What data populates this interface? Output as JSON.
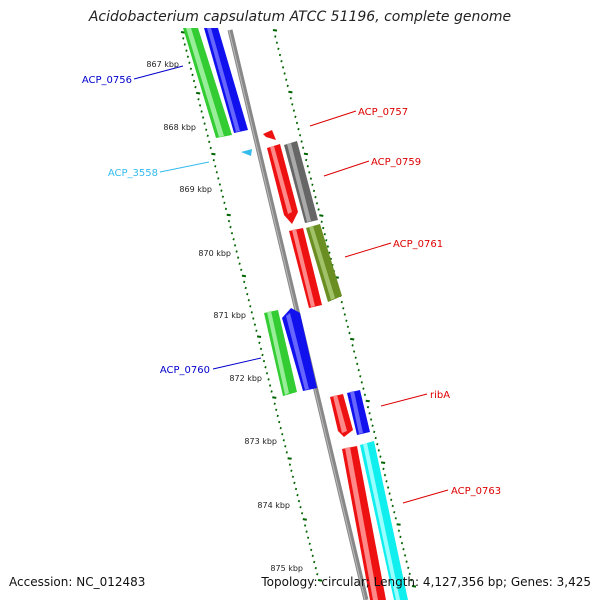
{
  "title": "Acidobacterium capsulatum ATCC 51196, complete genome",
  "footer": {
    "accession": "Accession: NC_012483",
    "summary": "Topology: circular; Length: 4,127,356 bp; Genes: 3,425"
  },
  "colors": {
    "backbone": "#888888",
    "tick": "#006400",
    "green": "#33cc33",
    "blue": "#1111ee",
    "red": "#ee1111",
    "gray": "#666666",
    "olive": "#6b8e23",
    "cyan": "#11eeee",
    "light_blue": "#33bbee"
  },
  "scale_labels": [
    "867 kbp",
    "868 kbp",
    "869 kbp",
    "870 kbp",
    "871 kbp",
    "872 kbp",
    "873 kbp",
    "874 kbp",
    "875 kbp"
  ],
  "genes": [
    {
      "label": "ACP_0756",
      "color": "#0000cc"
    },
    {
      "label": "ACP_0757",
      "color": "#dd0000"
    },
    {
      "label": "ACP_3558",
      "color": "#33bbee"
    },
    {
      "label": "ACP_0759",
      "color": "#dd0000"
    },
    {
      "label": "ACP_0761",
      "color": "#dd0000"
    },
    {
      "label": "ACP_0760",
      "color": "#0000cc"
    },
    {
      "label": "ribA",
      "color": "#dd0000"
    },
    {
      "label": "ACP_0763",
      "color": "#dd0000"
    }
  ]
}
